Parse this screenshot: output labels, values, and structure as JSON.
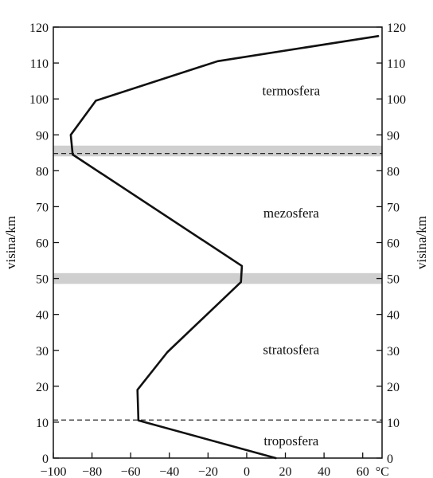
{
  "chart_data": {
    "type": "line",
    "title": "",
    "xlabel": "°C",
    "ylabel": "visina/km",
    "xlim": [
      -100,
      70
    ],
    "ylim": [
      0,
      120
    ],
    "x_ticks": [
      -100,
      -80,
      -60,
      -40,
      -20,
      0,
      20,
      40,
      60
    ],
    "x_tick_labels": [
      "−100",
      "−80",
      "−60",
      "−40",
      "−20",
      "0",
      "20",
      "40",
      "60"
    ],
    "y_ticks": [
      0,
      10,
      20,
      30,
      40,
      50,
      60,
      70,
      80,
      90,
      100,
      110,
      120
    ],
    "y_tick_labels": [
      "0",
      "10",
      "20",
      "30",
      "40",
      "50",
      "60",
      "70",
      "80",
      "90",
      "100",
      "110",
      "120"
    ],
    "series": [
      {
        "name": "",
        "points": [
          [
            15,
            0
          ],
          [
            -56,
            10.5
          ],
          [
            -56.5,
            19
          ],
          [
            -41,
            29.5
          ],
          [
            -3,
            49
          ],
          [
            -2.5,
            53.5
          ],
          [
            -90,
            84.5
          ],
          [
            -91,
            90
          ],
          [
            -78,
            99.5
          ],
          [
            -15,
            110.5
          ],
          [
            68,
            117.5
          ]
        ]
      }
    ],
    "bands": [
      {
        "y_from": 84,
        "y_to": 87
      },
      {
        "y_from": 48.5,
        "y_to": 51.5
      }
    ],
    "dashed_lines": [
      84.8,
      10.6
    ],
    "layers": [
      {
        "label": "termosfera",
        "x": 23,
        "y": 101
      },
      {
        "label": "mezosfera",
        "x": 23,
        "y": 67
      },
      {
        "label": "stratosfera",
        "x": 23,
        "y": 29
      },
      {
        "label": "troposfera",
        "x": 23,
        "y": 3.5
      }
    ],
    "grid": false,
    "secondary_y_axis": true
  }
}
